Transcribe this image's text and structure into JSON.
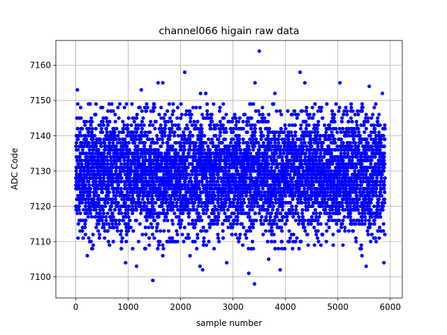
{
  "chart_data": {
    "type": "scatter",
    "title": "channel066 higain raw data",
    "xlabel": "sample number",
    "ylabel": "ADC Code",
    "xlim": [
      -380,
      6230
    ],
    "ylim": [
      7094,
      7167
    ],
    "x_ticks": [
      0,
      1000,
      2000,
      3000,
      4000,
      5000,
      6000
    ],
    "x_tick_labels": [
      "0",
      "1000",
      "2000",
      "3000",
      "4000",
      "5000",
      "6000"
    ],
    "y_ticks": [
      7100,
      7110,
      7120,
      7130,
      7140,
      7150,
      7160
    ],
    "y_tick_labels": [
      "7100",
      "7110",
      "7120",
      "7130",
      "7140",
      "7150",
      "7160"
    ],
    "grid": true,
    "marker_color": "#0000ff",
    "series": [
      {
        "n_samples": 5900,
        "x_range": [
          0,
          5900
        ],
        "baseline": 7129,
        "noise_std": 8.5,
        "outliers": [
          {
            "x": 3500,
            "y": 7164
          },
          {
            "x": 2080,
            "y": 7158
          },
          {
            "x": 4280,
            "y": 7158
          },
          {
            "x": 3420,
            "y": 7155
          },
          {
            "x": 5040,
            "y": 7155
          },
          {
            "x": 1570,
            "y": 7155
          },
          {
            "x": 1660,
            "y": 7155
          },
          {
            "x": 5600,
            "y": 7154
          },
          {
            "x": 30,
            "y": 7153
          },
          {
            "x": 1250,
            "y": 7153
          },
          {
            "x": 2380,
            "y": 7152
          },
          {
            "x": 2480,
            "y": 7152
          },
          {
            "x": 3800,
            "y": 7152
          },
          {
            "x": 4370,
            "y": 7155
          },
          {
            "x": 5850,
            "y": 7152
          },
          {
            "x": 1470,
            "y": 7099
          },
          {
            "x": 3410,
            "y": 7098
          },
          {
            "x": 3300,
            "y": 7101
          },
          {
            "x": 3900,
            "y": 7102
          },
          {
            "x": 2420,
            "y": 7102
          },
          {
            "x": 2370,
            "y": 7103
          },
          {
            "x": 5540,
            "y": 7103
          },
          {
            "x": 1160,
            "y": 7103
          },
          {
            "x": 5880,
            "y": 7104
          },
          {
            "x": 950,
            "y": 7104
          },
          {
            "x": 2880,
            "y": 7104
          },
          {
            "x": 3680,
            "y": 7105
          },
          {
            "x": 220,
            "y": 7106
          },
          {
            "x": 1660,
            "y": 7106
          },
          {
            "x": 5460,
            "y": 7106
          },
          {
            "x": 2180,
            "y": 7106
          }
        ]
      }
    ]
  }
}
